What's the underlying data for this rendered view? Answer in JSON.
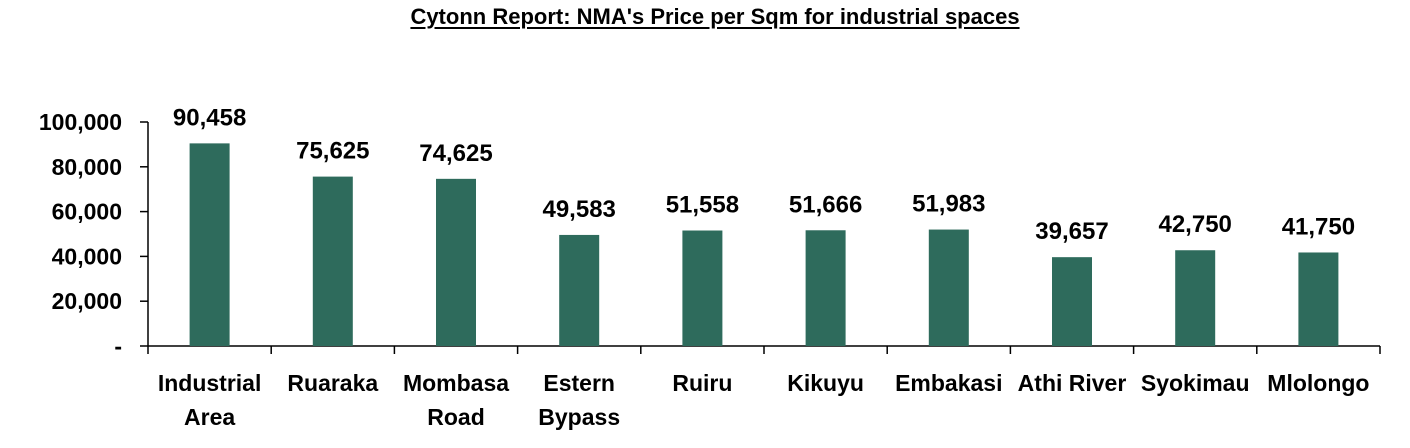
{
  "chart_data": {
    "type": "bar",
    "title": "Cytonn Report: NMA's Price per Sqm for industrial spaces",
    "xlabel": "",
    "ylabel": "",
    "categories": [
      [
        "Industrial",
        "Area"
      ],
      [
        "Ruaraka"
      ],
      [
        "Mombasa",
        "Road"
      ],
      [
        "Estern",
        "Bypass"
      ],
      [
        "Ruiru"
      ],
      [
        "Kikuyu"
      ],
      [
        "Embakasi"
      ],
      [
        "Athi River"
      ],
      [
        "Syokimau"
      ],
      [
        "Mlolongo"
      ]
    ],
    "values": [
      90458,
      75625,
      74625,
      49583,
      51558,
      51666,
      51983,
      39657,
      42750,
      41750
    ],
    "data_labels": [
      "90,458",
      "75,625",
      "74,625",
      "49,583",
      "51,558",
      "51,666",
      "51,983",
      "39,657",
      "42,750",
      "41,750"
    ],
    "ylim": [
      0,
      100000
    ],
    "y_ticks": [
      0,
      20000,
      40000,
      60000,
      80000,
      100000
    ],
    "y_tick_labels": [
      "-",
      "20,000",
      "40,000",
      "60,000",
      "80,000",
      "100,000"
    ],
    "grid": false,
    "legend": "none",
    "bar_color": "#2e6b5c"
  }
}
